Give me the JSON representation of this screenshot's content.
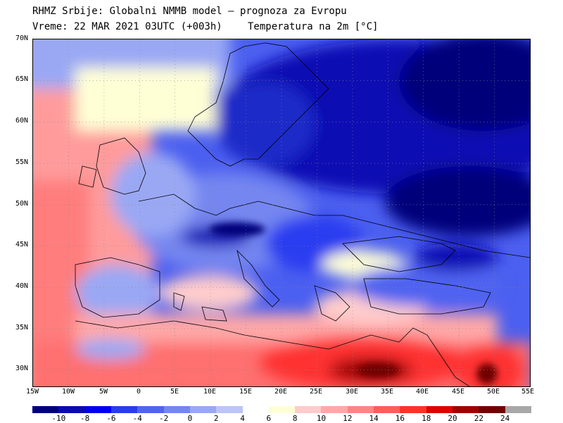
{
  "header": {
    "line1": "RHMZ Srbije: Globalni NMMB model — prognoza za Evropu",
    "line2_left": "Vreme: 22 MAR 2021 03UTC (+003h)",
    "line2_right": "Temperatura na 2m [°C]"
  },
  "map": {
    "lat_labels": [
      "70N",
      "65N",
      "60N",
      "55N",
      "50N",
      "45N",
      "40N",
      "35N",
      "30N"
    ],
    "lon_labels": [
      "15W",
      "10W",
      "5W",
      "0",
      "5E",
      "10E",
      "15E",
      "20E",
      "25E",
      "30E",
      "35E",
      "40E",
      "45E",
      "50E",
      "55E"
    ],
    "lat_range": [
      28,
      70
    ],
    "lon_range": [
      -15,
      55
    ]
  },
  "legend": {
    "labels": [
      "-10",
      "-8",
      "-6",
      "-4",
      "-2",
      "0",
      "2",
      "4",
      "6",
      "8",
      "10",
      "12",
      "14",
      "16",
      "18",
      "20",
      "22",
      "24"
    ],
    "colors": [
      "#00007a",
      "#0a0ab4",
      "#0000f0",
      "#2a3cf0",
      "#5064f0",
      "#7486f0",
      "#9aa8f4",
      "#bcc4f8",
      "#ffffff",
      "#ffffd6",
      "#ffcccc",
      "#ffa8a8",
      "#ff8484",
      "#ff5c5c",
      "#ff3030",
      "#e00000",
      "#a00000",
      "#700000",
      "#a8a8a8"
    ]
  }
}
